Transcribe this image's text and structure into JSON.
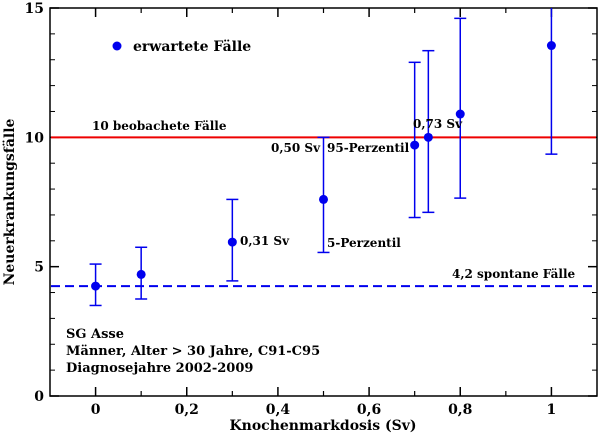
{
  "chart_data": {
    "type": "scatter",
    "xlabel": "Knochenmarkdosis (Sv)",
    "ylabel": "Neuerkrankungsfälle",
    "xlim": [
      -0.1,
      1.1
    ],
    "ylim": [
      0,
      15
    ],
    "x_ticks": [
      {
        "value": 0,
        "label": "0"
      },
      {
        "value": 0.2,
        "label": "0,2"
      },
      {
        "value": 0.4,
        "label": "0,4"
      },
      {
        "value": 0.6,
        "label": "0,6"
      },
      {
        "value": 0.8,
        "label": "0,8"
      },
      {
        "value": 1.0,
        "label": "1"
      }
    ],
    "y_ticks": [
      {
        "value": 0,
        "label": "0"
      },
      {
        "value": 5,
        "label": "5"
      },
      {
        "value": 10,
        "label": "10"
      },
      {
        "value": 15,
        "label": "15"
      }
    ],
    "grid": false,
    "legend": {
      "position": "top-left",
      "entries": [
        "erwartete Fälle"
      ]
    },
    "series": [
      {
        "name": "erwartete Fälle",
        "color": "#0000ee",
        "points": [
          {
            "x": 0.0,
            "y": 4.25,
            "low": 3.5,
            "high": 5.1
          },
          {
            "x": 0.1,
            "y": 4.7,
            "low": 3.75,
            "high": 5.75
          },
          {
            "x": 0.3,
            "y": 5.95,
            "low": 4.45,
            "high": 7.6
          },
          {
            "x": 0.5,
            "y": 7.6,
            "low": 5.55,
            "high": 10.0
          },
          {
            "x": 0.7,
            "y": 9.7,
            "low": 6.9,
            "high": 12.9
          },
          {
            "x": 0.73,
            "y": 10.0,
            "low": 7.1,
            "high": 13.35
          },
          {
            "x": 0.8,
            "y": 10.9,
            "low": 7.65,
            "high": 14.6
          },
          {
            "x": 1.0,
            "y": 13.55,
            "low": 9.35,
            "high": 15.0
          }
        ]
      }
    ],
    "reference_lines": [
      {
        "y": 10,
        "label": "10 beobachete Fälle",
        "color": "#ee0000",
        "style": "solid"
      },
      {
        "y": 4.25,
        "label": "4,2 spontane Fälle",
        "color": "#0000ee",
        "style": "dashed"
      }
    ],
    "annotations": [
      {
        "text": "0,31 Sv",
        "x": 0.31,
        "y": 5.95
      },
      {
        "text": "0,50 Sv",
        "x": 0.5,
        "y": 9.5
      },
      {
        "text": "95-Perzentil",
        "x": 0.5,
        "y": 9.5
      },
      {
        "text": "5-Perzentil",
        "x": 0.5,
        "y": 5.9
      },
      {
        "text": "0,73 Sv",
        "x": 0.73,
        "y": 10.4
      }
    ],
    "info_lines": [
      "SG Asse",
      "Männer, Alter > 30 Jahre, C91-C95",
      "Diagnosejahre 2002-2009"
    ]
  }
}
